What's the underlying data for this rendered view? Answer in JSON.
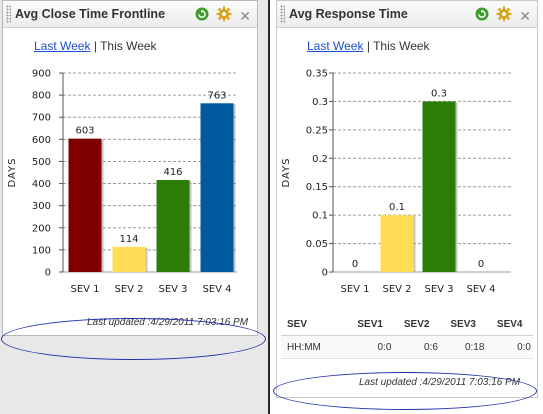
{
  "colors": {
    "sev1": "#800000",
    "sev2": "#ffdd55",
    "sev3": "#2b7d07",
    "sev4": "#005a9e",
    "grid": "#9c9c9c",
    "link": "#1a4fd0"
  },
  "left_panel": {
    "title": "Avg Close Time Frontline",
    "tabs": {
      "last_week": "Last Week",
      "separator": "|",
      "this_week": "This Week"
    },
    "last_updated": "Last updated :4/29/2011 7:03:16 PM",
    "icons": [
      "refresh-icon",
      "settings-gear-icon",
      "close-icon"
    ],
    "close_glyph": "✕"
  },
  "right_panel": {
    "title": "Avg Response Time",
    "tabs": {
      "last_week": "Last Week",
      "separator": "|",
      "this_week": "This Week"
    },
    "last_updated": "Last updated :4/29/2011 7:03:16 PM",
    "icons": [
      "refresh-icon",
      "settings-gear-icon",
      "close-icon"
    ],
    "close_glyph": "✕",
    "table": {
      "headers": [
        "SEV",
        "SEV1",
        "SEV2",
        "SEV3",
        "SEV4"
      ],
      "row": [
        "HH:MM",
        "0:0",
        "0:6",
        "0:18",
        "0:0"
      ]
    }
  },
  "chart_data": [
    {
      "type": "bar",
      "title": "Avg Close Time Frontline",
      "categories": [
        "SEV 1",
        "SEV 2",
        "SEV 3",
        "SEV 4"
      ],
      "values": [
        603,
        114,
        416,
        763
      ],
      "labels": [
        "603",
        "114",
        "416",
        "763"
      ],
      "ylabel": "DAYS",
      "ylim": [
        0,
        900
      ],
      "yticks": [
        "0",
        "100",
        "200",
        "300",
        "400",
        "500",
        "600",
        "700",
        "800",
        "900"
      ],
      "yticks_values": [
        0,
        100,
        200,
        300,
        400,
        500,
        600,
        700,
        800,
        900
      ],
      "grid": true
    },
    {
      "type": "bar",
      "title": "Avg Response Time",
      "categories": [
        "SEV 1",
        "SEV 2",
        "SEV 3",
        "SEV 4"
      ],
      "values": [
        0,
        0.1,
        0.3,
        0
      ],
      "labels": [
        "0",
        "0.1",
        "0.3",
        "0"
      ],
      "ylabel": "DAYS",
      "ylim": [
        0,
        0.35
      ],
      "yticks": [
        "0",
        "0.05",
        "0.1",
        "0.15",
        "0.2",
        "0.25",
        "0.3",
        "0.35"
      ],
      "yticks_values": [
        0,
        0.05,
        0.1,
        0.15,
        0.2,
        0.25,
        0.3,
        0.35
      ],
      "grid": true
    }
  ]
}
